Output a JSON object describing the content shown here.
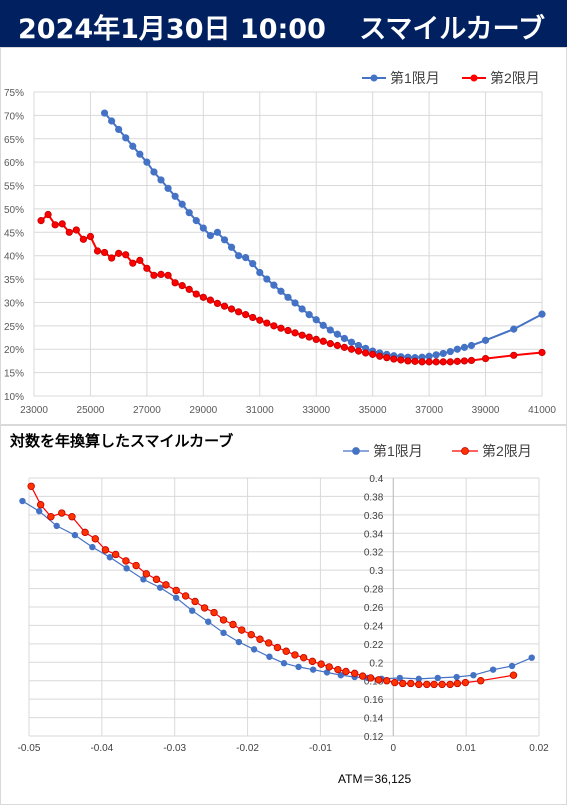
{
  "header": {
    "date": "2024年1月30日 10:00",
    "title": "スマイルカーブ"
  },
  "chart_data": [
    {
      "type": "line",
      "title": "",
      "xlabel": "",
      "ylabel": "",
      "xlim": [
        23000,
        41000
      ],
      "ylim": [
        10,
        75
      ],
      "x_ticks": [
        "23000",
        "25000",
        "27000",
        "29000",
        "31000",
        "33000",
        "35000",
        "37000",
        "39000",
        "41000"
      ],
      "y_ticks": [
        "10%",
        "15%",
        "20%",
        "25%",
        "30%",
        "35%",
        "40%",
        "45%",
        "50%",
        "55%",
        "60%",
        "65%",
        "70%",
        "75%"
      ],
      "grid": true,
      "legend": "top-right",
      "series": [
        {
          "name": "第1限月",
          "color": "#4472C4",
          "x": [
            25500,
            25750,
            26000,
            26250,
            26500,
            26750,
            27000,
            27250,
            27500,
            27750,
            28000,
            28250,
            28500,
            28750,
            29000,
            29250,
            29500,
            29750,
            30000,
            30250,
            30500,
            30750,
            31000,
            31250,
            31500,
            31750,
            32000,
            32250,
            32500,
            32750,
            33000,
            33250,
            33500,
            33750,
            34000,
            34250,
            34500,
            34750,
            35000,
            35250,
            35500,
            35750,
            36000,
            36250,
            36500,
            36750,
            37000,
            37250,
            37500,
            37750,
            38000,
            38250,
            38500,
            39000,
            40000,
            41000
          ],
          "values": [
            70.5,
            68.8,
            67.0,
            65.2,
            63.4,
            61.7,
            60.0,
            57.9,
            56.2,
            54.4,
            52.7,
            51.0,
            49.2,
            47.5,
            45.9,
            44.3,
            45.0,
            43.4,
            41.8,
            40.0,
            39.6,
            38.3,
            36.4,
            35.0,
            33.7,
            32.4,
            31.1,
            29.9,
            28.6,
            27.4,
            26.3,
            25.1,
            24.1,
            23.2,
            22.3,
            21.5,
            20.8,
            20.2,
            19.6,
            19.2,
            18.9,
            18.6,
            18.4,
            18.3,
            18.2,
            18.3,
            18.5,
            18.8,
            19.1,
            19.5,
            20.0,
            20.4,
            20.8,
            21.9,
            24.3,
            27.5
          ]
        },
        {
          "name": "第2限月",
          "color": "#FF0000",
          "x": [
            23250,
            23500,
            23750,
            24000,
            24250,
            24500,
            24750,
            25000,
            25250,
            25500,
            25750,
            26000,
            26250,
            26500,
            26750,
            27000,
            27250,
            27500,
            27750,
            28000,
            28250,
            28500,
            28750,
            29000,
            29250,
            29500,
            29750,
            30000,
            30250,
            30500,
            30750,
            31000,
            31250,
            31500,
            31750,
            32000,
            32250,
            32500,
            32750,
            33000,
            33250,
            33500,
            33750,
            34000,
            34250,
            34500,
            34750,
            35000,
            35250,
            35500,
            35750,
            36000,
            36250,
            36500,
            36750,
            37000,
            37250,
            37500,
            37750,
            38000,
            38250,
            38500,
            39000,
            40000,
            41000
          ],
          "values": [
            47.5,
            48.8,
            46.6,
            46.8,
            45.0,
            45.5,
            43.5,
            44.1,
            41.0,
            40.7,
            39.5,
            40.5,
            40.2,
            38.4,
            39.0,
            37.3,
            35.8,
            36.0,
            35.8,
            34.2,
            33.6,
            32.8,
            31.8,
            31.1,
            30.5,
            29.8,
            29.2,
            28.6,
            28.0,
            27.4,
            26.8,
            26.2,
            25.6,
            25.0,
            24.5,
            24.0,
            23.5,
            23.0,
            22.6,
            22.1,
            21.7,
            21.2,
            20.8,
            20.4,
            20.0,
            19.6,
            19.2,
            18.9,
            18.5,
            18.2,
            17.9,
            17.7,
            17.5,
            17.4,
            17.3,
            17.3,
            17.3,
            17.3,
            17.3,
            17.4,
            17.5,
            17.6,
            18.0,
            18.7,
            19.3
          ]
        }
      ]
    },
    {
      "type": "line",
      "title": "対数を年換算したスマイルカーブ",
      "xlabel": "",
      "ylabel": "",
      "xlim": [
        -0.05,
        0.02
      ],
      "ylim": [
        0.12,
        0.4
      ],
      "x_ticks": [
        "-0.05",
        "-0.04",
        "-0.03",
        "-0.02",
        "-0.01",
        "0",
        "0.01",
        "0.02"
      ],
      "y_ticks": [
        "0.12",
        "0.14",
        "0.16",
        "0.18",
        "0.2",
        "0.22",
        "0.24",
        "0.26",
        "0.28",
        "0.3",
        "0.32",
        "0.34",
        "0.36",
        "0.38",
        "0.4"
      ],
      "grid": true,
      "legend": "top-right",
      "annotation": "ATM＝36,125",
      "series": [
        {
          "name": "第1限月",
          "color": "#4472C4",
          "x": [
            -0.0509,
            -0.0486,
            -0.0462,
            -0.0437,
            -0.0413,
            -0.0389,
            -0.0366,
            -0.0343,
            -0.032,
            -0.0298,
            -0.0276,
            -0.0254,
            -0.0233,
            -0.0212,
            -0.0191,
            -0.017,
            -0.015,
            -0.013,
            -0.011,
            -0.0091,
            -0.0072,
            -0.0053,
            -0.0035,
            -0.0016,
            0.0009,
            0.0035,
            0.0061,
            0.0087,
            0.011,
            0.0137,
            0.0163,
            0.019
          ],
          "values": [
            0.375,
            0.364,
            0.348,
            0.338,
            0.325,
            0.314,
            0.302,
            0.29,
            0.281,
            0.27,
            0.256,
            0.244,
            0.232,
            0.222,
            0.214,
            0.206,
            0.199,
            0.195,
            0.192,
            0.189,
            0.186,
            0.184,
            0.183,
            0.182,
            0.183,
            0.182,
            0.183,
            0.184,
            0.186,
            0.192,
            0.196,
            0.205
          ]
        },
        {
          "name": "第2限月",
          "color": "#FF0000",
          "x": [
            -0.0497,
            -0.0484,
            -0.047,
            -0.0455,
            -0.0441,
            -0.0423,
            -0.0409,
            -0.0395,
            -0.0381,
            -0.0367,
            -0.0353,
            -0.0339,
            -0.0325,
            -0.0312,
            -0.0298,
            -0.0285,
            -0.0272,
            -0.0259,
            -0.0246,
            -0.0233,
            -0.022,
            -0.0208,
            -0.0195,
            -0.0183,
            -0.0171,
            -0.0159,
            -0.0147,
            -0.0135,
            -0.0123,
            -0.0111,
            -0.0099,
            -0.0088,
            -0.0076,
            -0.0065,
            -0.0053,
            -0.0042,
            -0.0031,
            -0.002,
            -0.0009,
            0.0002,
            0.0013,
            0.0024,
            0.0035,
            0.0046,
            0.0056,
            0.0067,
            0.0078,
            0.0088,
            0.0099,
            0.012,
            0.0165
          ],
          "values": [
            0.391,
            0.371,
            0.358,
            0.362,
            0.358,
            0.341,
            0.334,
            0.322,
            0.317,
            0.31,
            0.305,
            0.296,
            0.29,
            0.284,
            0.278,
            0.272,
            0.266,
            0.259,
            0.254,
            0.246,
            0.241,
            0.235,
            0.23,
            0.225,
            0.221,
            0.216,
            0.212,
            0.208,
            0.205,
            0.201,
            0.198,
            0.195,
            0.192,
            0.19,
            0.188,
            0.185,
            0.183,
            0.181,
            0.18,
            0.178,
            0.177,
            0.177,
            0.176,
            0.176,
            0.176,
            0.176,
            0.176,
            0.177,
            0.178,
            0.18,
            0.186
          ]
        }
      ]
    }
  ]
}
